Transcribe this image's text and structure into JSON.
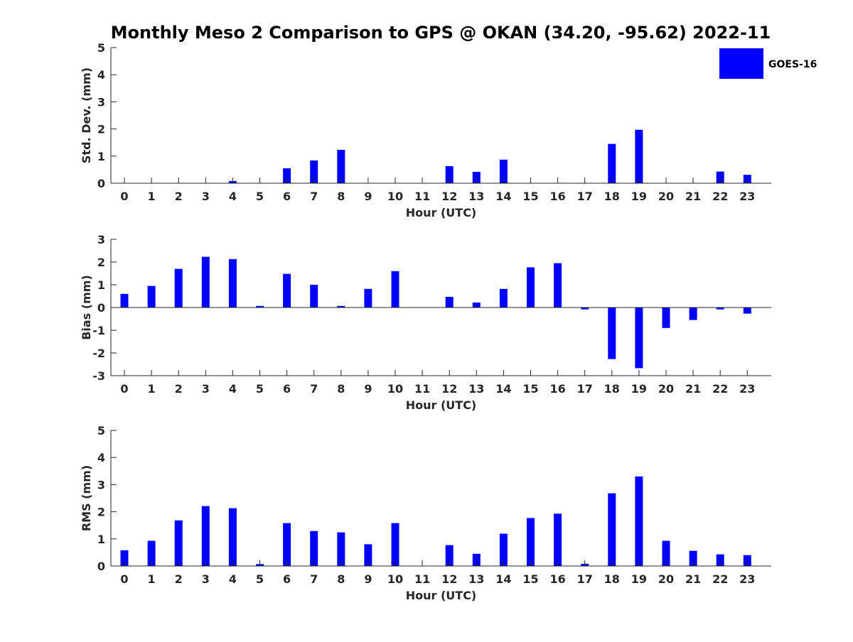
{
  "chart_data": {
    "title": "Monthly Meso 2 Comparison to GPS @ OKAN (34.20, -95.62) 2022-11",
    "legend": {
      "label": "GOES-16",
      "placement": "top-right",
      "color": "#0000ff"
    },
    "bar_color": "#0000ff",
    "panels": [
      {
        "type": "bar",
        "name": "std-dev",
        "ylabel": "Std. Dev. (mm)",
        "xlabel": "Hour (UTC)",
        "ylim": [
          0,
          5
        ],
        "yticks": [
          0,
          1,
          2,
          3,
          4,
          5
        ],
        "categories": [
          "0",
          "1",
          "2",
          "3",
          "4",
          "5",
          "6",
          "7",
          "8",
          "9",
          "10",
          "11",
          "12",
          "13",
          "14",
          "15",
          "16",
          "17",
          "18",
          "19",
          "20",
          "21",
          "22",
          "23"
        ],
        "values": [
          0,
          0,
          0,
          0,
          0.08,
          0,
          0.55,
          0.84,
          1.23,
          0,
          0,
          0,
          0.63,
          0.42,
          0.87,
          0,
          0,
          0,
          1.45,
          1.97,
          0,
          0,
          0.43,
          0.31
        ]
      },
      {
        "type": "bar",
        "name": "bias",
        "ylabel": "Bias (mm)",
        "xlabel": "Hour (UTC)",
        "ylim": [
          -3,
          3
        ],
        "yticks": [
          -3,
          -2,
          -1,
          0,
          1,
          2,
          3
        ],
        "categories": [
          "0",
          "1",
          "2",
          "3",
          "4",
          "5",
          "6",
          "7",
          "8",
          "9",
          "10",
          "11",
          "12",
          "13",
          "14",
          "15",
          "16",
          "17",
          "18",
          "19",
          "20",
          "21",
          "22",
          "23"
        ],
        "values": [
          0.6,
          0.95,
          1.7,
          2.23,
          2.13,
          0.07,
          1.48,
          1.0,
          0.07,
          0.82,
          1.6,
          0,
          0.47,
          0.22,
          0.82,
          1.77,
          1.95,
          -0.08,
          -2.27,
          -2.67,
          -0.9,
          -0.55,
          -0.08,
          -0.27
        ]
      },
      {
        "type": "bar",
        "name": "rms",
        "ylabel": "RMS (mm)",
        "xlabel": "Hour (UTC)",
        "ylim": [
          0,
          5
        ],
        "yticks": [
          0,
          1,
          2,
          3,
          4,
          5
        ],
        "categories": [
          "0",
          "1",
          "2",
          "3",
          "4",
          "5",
          "6",
          "7",
          "8",
          "9",
          "10",
          "11",
          "12",
          "13",
          "14",
          "15",
          "16",
          "17",
          "18",
          "19",
          "20",
          "21",
          "22",
          "23"
        ],
        "values": [
          0.58,
          0.93,
          1.68,
          2.21,
          2.13,
          0.07,
          1.58,
          1.29,
          1.24,
          0.8,
          1.58,
          0,
          0.77,
          0.45,
          1.19,
          1.77,
          1.93,
          0.08,
          2.68,
          3.3,
          0.93,
          0.56,
          0.43,
          0.4
        ]
      }
    ]
  }
}
